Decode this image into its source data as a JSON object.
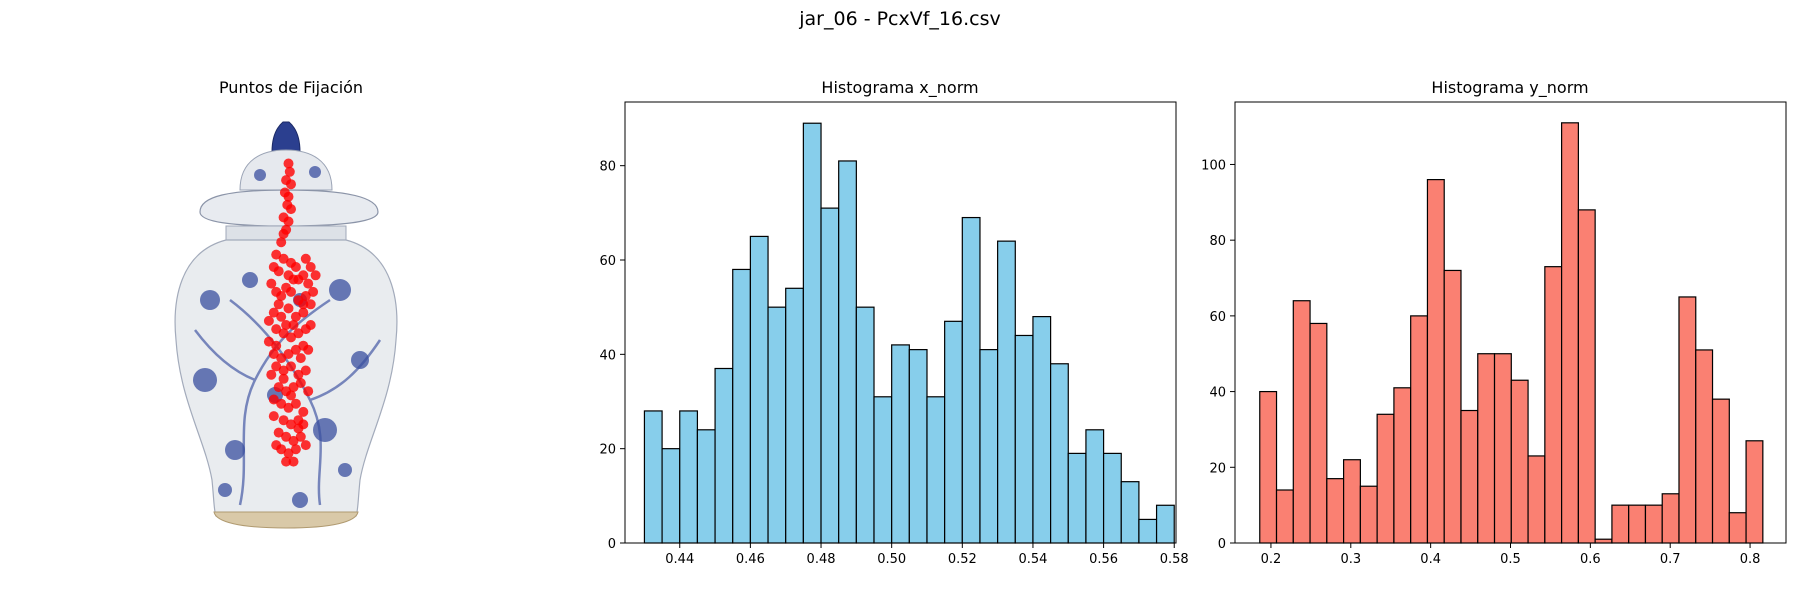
{
  "figure_title": "jar_06 - PcxVf_16.csv",
  "colors": {
    "x_hist": "#87ceeb",
    "y_hist": "#fa8072",
    "edge": "#000000",
    "fixation": "#ff0000",
    "jar_body": "#e9ecef",
    "jar_pattern": "#2b3f8f"
  },
  "chart_data": [
    {
      "type": "image",
      "title": "Puntos de Fijación",
      "description_icon": "porcelain-jar-image",
      "points": [
        [
          0.49,
          0.11
        ],
        [
          0.495,
          0.13
        ],
        [
          0.48,
          0.15
        ],
        [
          0.5,
          0.16
        ],
        [
          0.475,
          0.18
        ],
        [
          0.49,
          0.19
        ],
        [
          0.485,
          0.21
        ],
        [
          0.5,
          0.22
        ],
        [
          0.47,
          0.24
        ],
        [
          0.49,
          0.25
        ],
        [
          0.48,
          0.27
        ],
        [
          0.46,
          0.3
        ],
        [
          0.44,
          0.33
        ],
        [
          0.47,
          0.34
        ],
        [
          0.43,
          0.36
        ],
        [
          0.45,
          0.37
        ],
        [
          0.5,
          0.35
        ],
        [
          0.52,
          0.36
        ],
        [
          0.56,
          0.34
        ],
        [
          0.58,
          0.36
        ],
        [
          0.55,
          0.38
        ],
        [
          0.57,
          0.4
        ],
        [
          0.53,
          0.39
        ],
        [
          0.42,
          0.4
        ],
        [
          0.44,
          0.42
        ],
        [
          0.46,
          0.43
        ],
        [
          0.48,
          0.41
        ],
        [
          0.5,
          0.42
        ],
        [
          0.53,
          0.44
        ],
        [
          0.56,
          0.43
        ],
        [
          0.58,
          0.45
        ],
        [
          0.55,
          0.47
        ],
        [
          0.52,
          0.48
        ],
        [
          0.49,
          0.46
        ],
        [
          0.46,
          0.48
        ],
        [
          0.43,
          0.47
        ],
        [
          0.41,
          0.49
        ],
        [
          0.44,
          0.51
        ],
        [
          0.47,
          0.52
        ],
        [
          0.5,
          0.53
        ],
        [
          0.53,
          0.52
        ],
        [
          0.56,
          0.51
        ],
        [
          0.58,
          0.5
        ],
        [
          0.55,
          0.55
        ],
        [
          0.52,
          0.56
        ],
        [
          0.49,
          0.57
        ],
        [
          0.46,
          0.58
        ],
        [
          0.43,
          0.57
        ],
        [
          0.44,
          0.6
        ],
        [
          0.47,
          0.61
        ],
        [
          0.5,
          0.6
        ],
        [
          0.53,
          0.62
        ],
        [
          0.56,
          0.61
        ],
        [
          0.54,
          0.64
        ],
        [
          0.51,
          0.65
        ],
        [
          0.48,
          0.66
        ],
        [
          0.45,
          0.65
        ],
        [
          0.43,
          0.68
        ],
        [
          0.46,
          0.69
        ],
        [
          0.49,
          0.7
        ],
        [
          0.52,
          0.69
        ],
        [
          0.55,
          0.71
        ],
        [
          0.53,
          0.73
        ],
        [
          0.5,
          0.74
        ],
        [
          0.47,
          0.73
        ],
        [
          0.45,
          0.76
        ],
        [
          0.48,
          0.77
        ],
        [
          0.51,
          0.78
        ],
        [
          0.54,
          0.77
        ],
        [
          0.52,
          0.8
        ],
        [
          0.49,
          0.81
        ],
        [
          0.46,
          0.8
        ],
        [
          0.44,
          0.79
        ],
        [
          0.55,
          0.74
        ],
        [
          0.57,
          0.66
        ],
        [
          0.42,
          0.62
        ],
        [
          0.41,
          0.54
        ],
        [
          0.59,
          0.42
        ],
        [
          0.6,
          0.38
        ],
        [
          0.45,
          0.45
        ],
        [
          0.48,
          0.5
        ],
        [
          0.51,
          0.5
        ],
        [
          0.54,
          0.58
        ],
        [
          0.47,
          0.63
        ],
        [
          0.5,
          0.67
        ],
        [
          0.53,
          0.75
        ],
        [
          0.48,
          0.83
        ],
        [
          0.51,
          0.83
        ],
        [
          0.55,
          0.45
        ],
        [
          0.44,
          0.55
        ],
        [
          0.57,
          0.56
        ],
        [
          0.43,
          0.72
        ],
        [
          0.56,
          0.79
        ],
        [
          0.49,
          0.38
        ],
        [
          0.51,
          0.39
        ],
        [
          0.47,
          0.28
        ]
      ]
    },
    {
      "type": "bar",
      "title": "Histograma x_norm",
      "bin_start": 0.43,
      "bin_width": 0.005,
      "values": [
        28,
        20,
        28,
        24,
        37,
        58,
        65,
        50,
        54,
        89,
        71,
        81,
        50,
        31,
        42,
        41,
        31,
        47,
        69,
        41,
        64,
        44,
        48,
        38,
        19,
        24,
        19,
        13,
        5,
        8
      ],
      "xlim": [
        0.4245,
        0.5805
      ],
      "ylim": [
        0,
        93.5
      ],
      "xticks": [
        0.44,
        0.46,
        0.48,
        0.5,
        0.52,
        0.54,
        0.56,
        0.58
      ],
      "xtick_labels": [
        "0.44",
        "0.46",
        "0.48",
        "0.50",
        "0.52",
        "0.54",
        "0.56",
        "0.58"
      ],
      "yticks": [
        0,
        20,
        40,
        60,
        80
      ],
      "ytick_labels": [
        "0",
        "20",
        "40",
        "60",
        "80"
      ]
    },
    {
      "type": "bar",
      "title": "Histograma y_norm",
      "bin_start": 0.186,
      "bin_width": 0.021,
      "values": [
        40,
        14,
        64,
        58,
        17,
        22,
        15,
        34,
        41,
        60,
        96,
        72,
        35,
        50,
        50,
        43,
        23,
        73,
        111,
        88,
        1,
        10,
        10,
        10,
        13,
        65,
        51,
        38,
        8,
        27
      ],
      "xlim": [
        0.155,
        0.845
      ],
      "ylim": [
        0,
        116.5
      ],
      "xticks": [
        0.2,
        0.3,
        0.4,
        0.5,
        0.6,
        0.7,
        0.8
      ],
      "xtick_labels": [
        "0.2",
        "0.3",
        "0.4",
        "0.5",
        "0.6",
        "0.7",
        "0.8"
      ],
      "yticks": [
        0,
        20,
        40,
        60,
        80,
        100
      ],
      "ytick_labels": [
        "0",
        "20",
        "40",
        "60",
        "80",
        "100"
      ]
    }
  ]
}
